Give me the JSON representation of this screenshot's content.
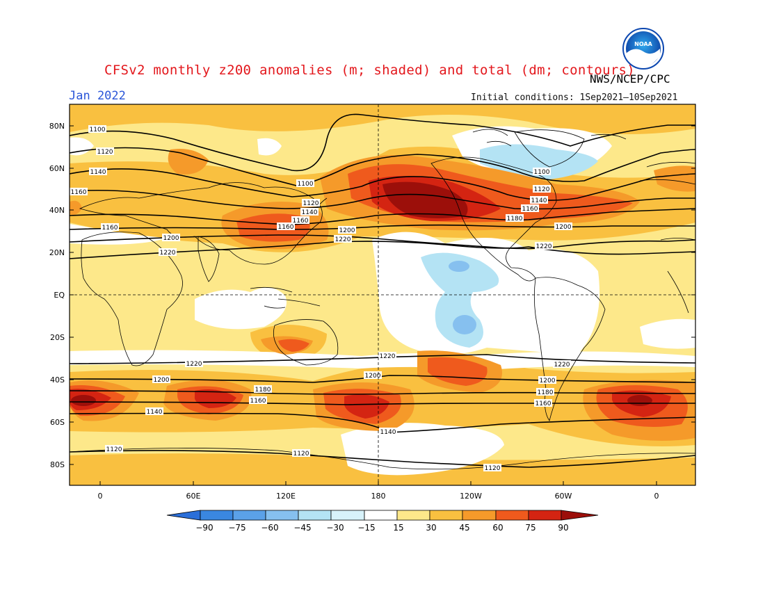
{
  "header": {
    "title": "CFSv2 monthly z200 anomalies (m; shaded) and total (dm; contours)",
    "agency": "NWS/NCEP/CPC",
    "month": "Jan 2022",
    "initial_conditions": "Initial conditions: 1Sep2021–10Sep2021",
    "logo_text": "NOAA"
  },
  "axes": {
    "lat_labels": [
      "80N",
      "60N",
      "40N",
      "20N",
      "EQ",
      "20S",
      "40S",
      "60S",
      "80S"
    ],
    "lon_labels": [
      "0",
      "60E",
      "120E",
      "180",
      "120W",
      "60W",
      "0"
    ]
  },
  "colorbar": {
    "ticks": [
      "−90",
      "−75",
      "−60",
      "−45",
      "−30",
      "−15",
      "15",
      "30",
      "45",
      "60",
      "75",
      "90"
    ],
    "colors": [
      "#2b6fd9",
      "#3a87e0",
      "#5ba1e8",
      "#86c0ef",
      "#b4e3f4",
      "#ffffff",
      "#fde88a",
      "#f9c040",
      "#f59a2a",
      "#ef5a1d",
      "#d42412",
      "#9c0f0a"
    ]
  },
  "contour_labels": {
    "north": [
      "1100",
      "1120",
      "1140",
      "1160",
      "1180",
      "1200",
      "1220"
    ],
    "south": [
      "1220",
      "1200",
      "1180",
      "1160",
      "1140",
      "1120"
    ]
  },
  "colors": {
    "background_fill": "#fde88a",
    "strong_positive": "#9c0f0a",
    "negative": "#b4e3f4"
  }
}
